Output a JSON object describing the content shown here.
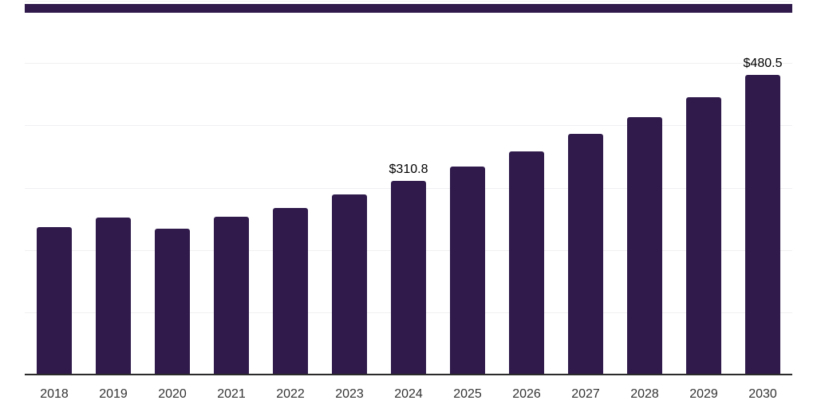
{
  "chart_data": {
    "type": "bar",
    "title": "",
    "xlabel": "",
    "ylabel": "",
    "categories": [
      "2018",
      "2019",
      "2020",
      "2021",
      "2022",
      "2023",
      "2024",
      "2025",
      "2026",
      "2027",
      "2028",
      "2029",
      "2030"
    ],
    "values": [
      237,
      252,
      234,
      253,
      267,
      289,
      310.8,
      334,
      358,
      386,
      413,
      445,
      480.5
    ],
    "data_labels": [
      null,
      null,
      null,
      null,
      null,
      null,
      "$310.8",
      null,
      null,
      null,
      null,
      null,
      "$480.5"
    ],
    "ylim": [
      0,
      600
    ],
    "grid": true,
    "grid_interval": 100,
    "y_tick_labels_visible": false,
    "legend": "none",
    "colors": {
      "bar": "#2F1A4B",
      "top_stripe": "#2F1A4B",
      "gridline": "#F0F0F2",
      "axis_line": "#2B2B2B",
      "tick_label": "#333333",
      "data_label": "#000000",
      "background": "#FFFFFF"
    }
  }
}
